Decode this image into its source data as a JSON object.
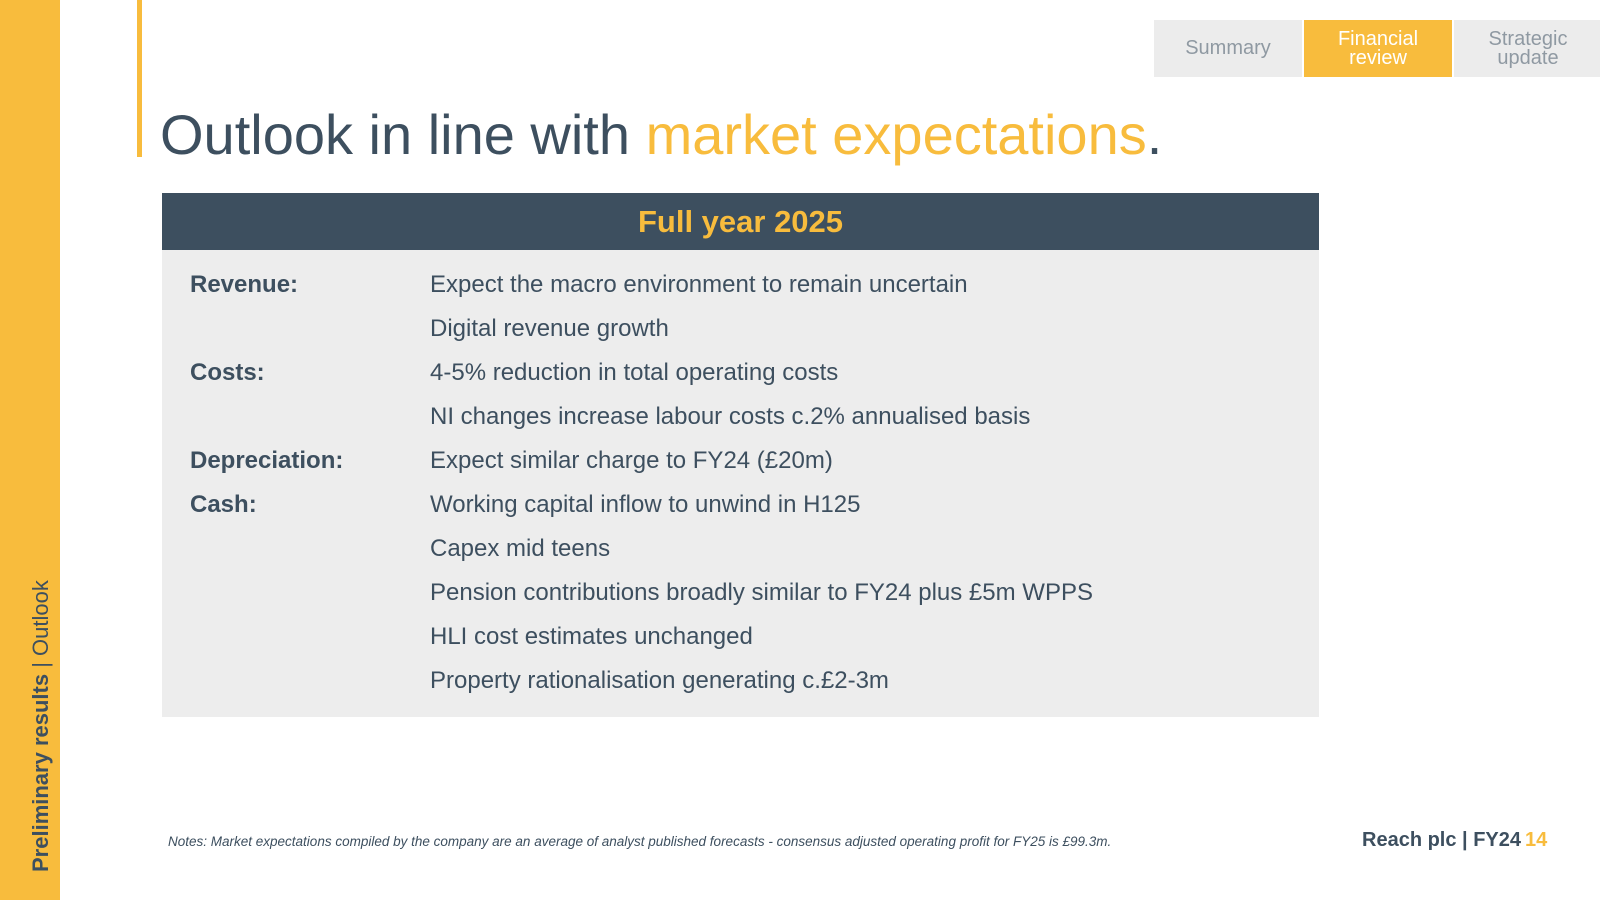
{
  "sidebar": {
    "bold_text": "Preliminary results",
    "separator": " | ",
    "section": "Outlook"
  },
  "tabs": [
    {
      "label": "Summary",
      "active": false
    },
    {
      "label": "Financial review",
      "active": true
    },
    {
      "label": "Strategic update",
      "active": false
    }
  ],
  "title": {
    "prefix": "Outlook in line with ",
    "highlight": "market expectations",
    "suffix": "."
  },
  "panel": {
    "header": "Full year 2025",
    "rows": [
      {
        "label": "Revenue:",
        "text": "Expect the macro environment to remain uncertain"
      },
      {
        "label": "",
        "text": "Digital revenue growth"
      },
      {
        "label": "Costs:",
        "text": "4-5% reduction in total operating costs"
      },
      {
        "label": "",
        "text": "NI changes increase labour costs c.2% annualised basis"
      },
      {
        "label": "Depreciation:",
        "text": "Expect similar charge to FY24 (£20m)"
      },
      {
        "label": "Cash:",
        "text": "Working capital inflow to unwind in H125"
      },
      {
        "label": "",
        "text": "Capex mid teens"
      },
      {
        "label": "",
        "text": "Pension contributions broadly similar to FY24 plus £5m WPPS"
      },
      {
        "label": "",
        "text": "HLI cost estimates unchanged"
      },
      {
        "label": "",
        "text": "Property rationalisation generating c.£2-3m"
      }
    ]
  },
  "notes": "Notes: Market expectations compiled by the company are an average of analyst published forecasts - consensus adjusted operating profit for FY25 is £99.3m.",
  "footer": {
    "brand": "Reach plc | FY24",
    "page_number": "14"
  },
  "colors": {
    "accent": "#f8bc3d",
    "dark": "#3d4f5f",
    "panel_bg": "#ededed",
    "tab_bg": "#ececec"
  }
}
